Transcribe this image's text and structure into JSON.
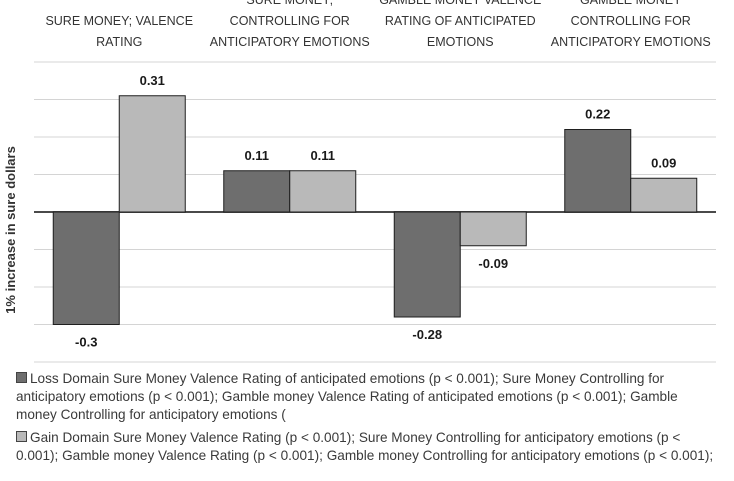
{
  "chart_data": {
    "type": "bar",
    "ylabel": "1% increase in sure dollars",
    "ylim": [
      -0.4,
      0.4
    ],
    "grid": true,
    "categories": [
      {
        "lines": [
          "SURE MONEY; VALENCE",
          "RATING"
        ]
      },
      {
        "lines": [
          "SURE MONEY;",
          "CONTROLLING FOR",
          "ANTICIPATORY  EMOTIONS"
        ]
      },
      {
        "lines": [
          "GAMBLE MONEY VALENCE",
          "RATING OF ANTICIPATED",
          "EMOTIONS"
        ]
      },
      {
        "lines": [
          "GAMBLE MONEY",
          "CONTROLLING FOR",
          "ANTICIPATORY  EMOTIONS"
        ]
      }
    ],
    "series": [
      {
        "name": "Loss Domain",
        "color": "#6e6e6e",
        "values": [
          -0.3,
          0.11,
          -0.28,
          0.22
        ],
        "labels": [
          "-0.3",
          "0.11",
          "-0.28",
          "0.22"
        ]
      },
      {
        "name": "Gain Domain",
        "color": "#b9b9b9",
        "values": [
          0.31,
          0.11,
          -0.09,
          0.09
        ],
        "labels": [
          "0.31",
          "0.11",
          "-0.09",
          "0.09"
        ]
      }
    ]
  },
  "legend": {
    "loss": "Loss Domain Sure Money Valence Rating of anticipated emotions (p < 0.001); Sure Money Controlling for anticipatory  emotions (p < 0.001); Gamble money Valence Rating of anticipated emotions (p < 0.001); Gamble money Controlling for anticipatory emotions (",
    "gain": "Gain Domain Sure Money Valence Rating (p < 0.001); Sure Money Controlling for anticipatory  emotions (p < 0.001); Gamble money Valence Rating (p < 0.001); Gamble money Controlling for anticipatory  emotions (p < 0.001);"
  }
}
